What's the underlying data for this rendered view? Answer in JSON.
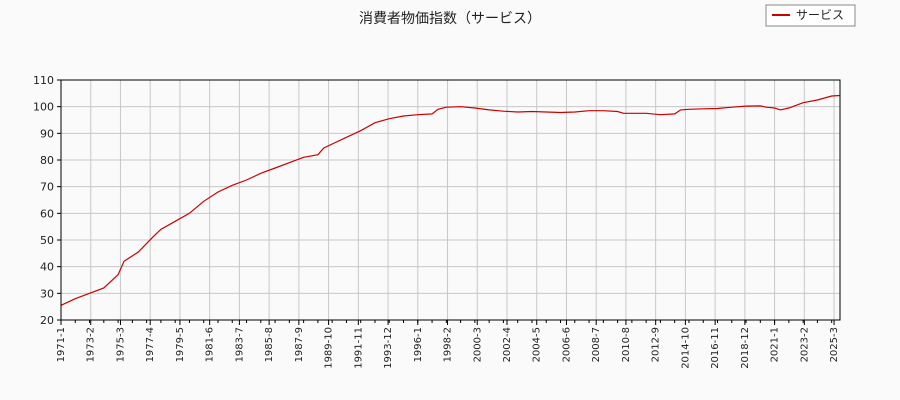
{
  "chart_data": {
    "type": "line",
    "title": "消費者物価指数（サービス）",
    "xlabel": "",
    "ylabel": "",
    "ylim": [
      20,
      110
    ],
    "yticks": [
      20,
      30,
      40,
      50,
      60,
      70,
      80,
      90,
      100,
      110
    ],
    "grid": true,
    "legend_position": "top-right",
    "x_tick_labels": [
      "1971-1",
      "1973-2",
      "1975-3",
      "1977-4",
      "1979-5",
      "1981-6",
      "1983-7",
      "1985-8",
      "1987-9",
      "1989-10",
      "1991-11",
      "1993-12",
      "1996-1",
      "1998-2",
      "2000-3",
      "2002-4",
      "2004-5",
      "2006-6",
      "2008-7",
      "2010-8",
      "2012-9",
      "2014-10",
      "2016-11",
      "2018-12",
      "2021-1",
      "2023-2",
      "2025-3"
    ],
    "x_range": [
      "1971-1",
      "2025-8"
    ],
    "series": [
      {
        "name": "サービス",
        "color": "#cc0000",
        "points": [
          [
            "1971-1",
            25.5
          ],
          [
            "1972-1",
            28.0
          ],
          [
            "1973-1",
            30.0
          ],
          [
            "1974-1",
            32.0
          ],
          [
            "1975-1",
            37.0
          ],
          [
            "1975-6",
            42.0
          ],
          [
            "1976-6",
            45.5
          ],
          [
            "1977-6",
            51.0
          ],
          [
            "1978-1",
            54.0
          ],
          [
            "1979-1",
            57.0
          ],
          [
            "1980-1",
            60.0
          ],
          [
            "1981-1",
            64.5
          ],
          [
            "1982-1",
            68.0
          ],
          [
            "1983-1",
            70.5
          ],
          [
            "1984-1",
            72.5
          ],
          [
            "1985-1",
            75.0
          ],
          [
            "1986-1",
            77.0
          ],
          [
            "1987-1",
            79.0
          ],
          [
            "1988-1",
            81.0
          ],
          [
            "1989-1",
            82.0
          ],
          [
            "1989-6",
            84.5
          ],
          [
            "1990-1",
            86.0
          ],
          [
            "1991-1",
            88.5
          ],
          [
            "1992-1",
            91.0
          ],
          [
            "1993-1",
            94.0
          ],
          [
            "1994-1",
            95.5
          ],
          [
            "1995-1",
            96.5
          ],
          [
            "1996-1",
            97.0
          ],
          [
            "1997-1",
            97.3
          ],
          [
            "1997-6",
            99.0
          ],
          [
            "1998-1",
            99.8
          ],
          [
            "1999-1",
            100.0
          ],
          [
            "2000-1",
            99.5
          ],
          [
            "2001-1",
            98.8
          ],
          [
            "2002-1",
            98.3
          ],
          [
            "2003-1",
            98.0
          ],
          [
            "2004-1",
            98.2
          ],
          [
            "2005-1",
            98.0
          ],
          [
            "2006-1",
            97.8
          ],
          [
            "2007-1",
            98.0
          ],
          [
            "2008-1",
            98.5
          ],
          [
            "2009-1",
            98.5
          ],
          [
            "2010-1",
            98.2
          ],
          [
            "2010-6",
            97.5
          ],
          [
            "2011-1",
            97.5
          ],
          [
            "2012-1",
            97.5
          ],
          [
            "2013-1",
            97.0
          ],
          [
            "2014-1",
            97.3
          ],
          [
            "2014-6",
            98.8
          ],
          [
            "2015-1",
            99.0
          ],
          [
            "2016-1",
            99.2
          ],
          [
            "2017-1",
            99.3
          ],
          [
            "2018-1",
            99.8
          ],
          [
            "2019-1",
            100.2
          ],
          [
            "2020-1",
            100.3
          ],
          [
            "2020-6",
            99.8
          ],
          [
            "2021-1",
            99.5
          ],
          [
            "2021-6",
            98.8
          ],
          [
            "2022-1",
            99.5
          ],
          [
            "2023-1",
            101.5
          ],
          [
            "2024-1",
            102.5
          ],
          [
            "2025-1",
            104.0
          ],
          [
            "2025-8",
            104.2
          ]
        ]
      }
    ]
  }
}
